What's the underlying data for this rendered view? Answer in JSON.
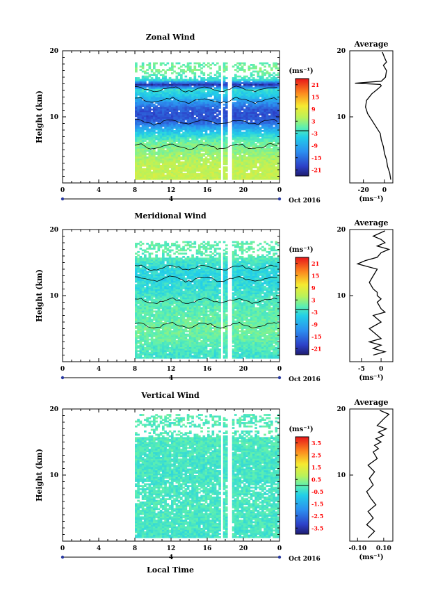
{
  "figure": {
    "xlabel": "Local Time",
    "date_label": "Oct 2016",
    "day_label": "4",
    "avg_title": "Average",
    "ylabel": "Height (km)",
    "unit": "(ms⁻¹)"
  },
  "chart_data": [
    {
      "type": "heatmap",
      "title": "Zonal Wind",
      "xlabel": "Local Time",
      "ylabel": "Height (km)",
      "xlim": [
        0,
        24
      ],
      "ylim": [
        0,
        20
      ],
      "xticks": [
        "0",
        "4",
        "8",
        "12",
        "16",
        "20",
        "0"
      ],
      "yticks": [
        "10",
        "20"
      ],
      "colorbar": {
        "unit": "(ms⁻¹)",
        "ticks": [
          "21",
          "15",
          "9",
          "3",
          "-3",
          "-9",
          "-15",
          "-21"
        ],
        "range": [
          -24,
          24
        ]
      },
      "data_window_hours": [
        8.0,
        24.0
      ],
      "gap_hours": [
        [
          17.3,
          17.6
        ],
        [
          18.2,
          18.6
        ]
      ],
      "profile": [
        {
          "height_km": 1.5,
          "value": 6
        },
        {
          "height_km": 3,
          "value": 5
        },
        {
          "height_km": 5,
          "value": 2
        },
        {
          "height_km": 6,
          "value": 1
        },
        {
          "height_km": 7,
          "value": -3
        },
        {
          "height_km": 8,
          "value": -8
        },
        {
          "height_km": 9,
          "value": -15
        },
        {
          "height_km": 10,
          "value": -18
        },
        {
          "height_km": 11,
          "value": -17
        },
        {
          "height_km": 12,
          "value": -12
        },
        {
          "height_km": 13,
          "value": -6
        },
        {
          "height_km": 14,
          "value": -3
        },
        {
          "height_km": 14.8,
          "value": -22
        },
        {
          "height_km": 15.5,
          "value": -3
        },
        {
          "height_km": 17,
          "value": 2
        },
        {
          "height_km": 18,
          "value": 0
        },
        {
          "height_km": 18.5,
          "value": -2
        }
      ],
      "average": {
        "title": "Average",
        "xticks": [
          "-20",
          "0"
        ],
        "xlim": [
          -33,
          8
        ],
        "xlabel": "(ms⁻¹)",
        "x": [
          6,
          5,
          3,
          2,
          0,
          -1,
          -3,
          -4,
          -8,
          -12,
          -16,
          -18,
          -17,
          -12,
          -8,
          -5,
          -3,
          -4,
          -28,
          -3,
          1,
          2,
          -1,
          2,
          0,
          -2
        ],
        "height": [
          0.5,
          1.5,
          2.5,
          3.5,
          4.5,
          5.5,
          6.5,
          7.5,
          8.5,
          9.5,
          10.5,
          11.5,
          12.5,
          13.5,
          14.0,
          14.4,
          14.7,
          14.9,
          15.1,
          15.4,
          16.0,
          17.0,
          17.8,
          18.3,
          19.0,
          19.8
        ]
      }
    },
    {
      "type": "heatmap",
      "title": "Meridional Wind",
      "xlabel": "Local Time",
      "ylabel": "Height (km)",
      "xlim": [
        0,
        24
      ],
      "ylim": [
        0,
        20
      ],
      "xticks": [
        "0",
        "4",
        "8",
        "12",
        "16",
        "20",
        "0"
      ],
      "yticks": [
        "10",
        "20"
      ],
      "colorbar": {
        "unit": "(ms⁻¹)",
        "ticks": [
          "21",
          "15",
          "9",
          "3",
          "-3",
          "-9",
          "-15",
          "-21"
        ],
        "range": [
          -24,
          24
        ]
      },
      "data_window_hours": [
        8.0,
        24.0
      ],
      "gap_hours": [
        [
          17.3,
          17.6
        ],
        [
          18.2,
          18.6
        ]
      ],
      "profile": [
        {
          "height_km": 1,
          "value": -2
        },
        {
          "height_km": 3,
          "value": 0
        },
        {
          "height_km": 5,
          "value": 1
        },
        {
          "height_km": 7,
          "value": 0
        },
        {
          "height_km": 9,
          "value": -1
        },
        {
          "height_km": 11,
          "value": -3
        },
        {
          "height_km": 13,
          "value": -4
        },
        {
          "height_km": 14.5,
          "value": -3
        },
        {
          "height_km": 15.5,
          "value": -1
        },
        {
          "height_km": 17,
          "value": 0
        },
        {
          "height_km": 18.5,
          "value": 0
        }
      ],
      "average": {
        "title": "Average",
        "xticks": [
          "-5",
          "0"
        ],
        "xlim": [
          -8,
          3
        ],
        "xlabel": "(ms⁻¹)",
        "x": [
          -2,
          1,
          -2,
          0,
          -3,
          0,
          -1,
          -3,
          0,
          -2,
          1,
          0,
          -1,
          0,
          -1,
          -1,
          -2,
          -3,
          -2,
          -1,
          -6,
          -4,
          -1,
          0,
          2,
          -1,
          1,
          0,
          -2,
          1
        ],
        "height": [
          1.0,
          1.5,
          2.0,
          2.5,
          3.0,
          3.5,
          4.0,
          5.0,
          6.0,
          7.0,
          7.5,
          8.0,
          9.0,
          9.5,
          10.0,
          10.5,
          11.0,
          12.0,
          13.0,
          14.0,
          14.8,
          15.3,
          15.8,
          16.5,
          17.0,
          17.5,
          18.0,
          18.5,
          19.0,
          19.8
        ]
      }
    },
    {
      "type": "heatmap",
      "title": "Vertical Wind",
      "xlabel": "Local Time",
      "ylabel": "Height (km)",
      "xlim": [
        0,
        24
      ],
      "ylim": [
        0,
        20
      ],
      "xticks": [
        "0",
        "4",
        "8",
        "12",
        "16",
        "20",
        "0"
      ],
      "yticks": [
        "10",
        "20"
      ],
      "colorbar": {
        "unit": "(ms⁻¹)",
        "ticks": [
          "3.5",
          "2.5",
          "1.5",
          "0.5",
          "-0.5",
          "-1.5",
          "-2.5",
          "-3.5"
        ],
        "range": [
          -4,
          4
        ]
      },
      "data_window_hours": [
        8.0,
        24.0
      ],
      "gap_hours": [
        [
          17.3,
          17.6
        ],
        [
          18.2,
          18.6
        ]
      ],
      "profile": [
        {
          "height_km": 1,
          "value": -0.3
        },
        {
          "height_km": 5,
          "value": -0.2
        },
        {
          "height_km": 10,
          "value": -0.3
        },
        {
          "height_km": 15,
          "value": -0.2
        },
        {
          "height_km": 19,
          "value": -0.1
        }
      ],
      "average": {
        "title": "Average",
        "xticks": [
          "-0.10",
          "0.10"
        ],
        "xlim": [
          -0.16,
          0.17
        ],
        "xlabel": "(ms⁻¹)",
        "x": [
          -0.02,
          0.03,
          -0.03,
          0.02,
          -0.02,
          0.04,
          0.0,
          -0.03,
          0.02,
          -0.01,
          0.03,
          -0.02,
          0.05,
          0.02,
          0.06,
          0.03,
          0.08,
          0.04,
          0.1,
          0.06,
          0.12,
          0.05,
          0.1,
          0.14,
          0.07
        ],
        "height": [
          0.5,
          1.5,
          2.5,
          3.5,
          4.5,
          5.5,
          6.5,
          7.5,
          8.5,
          9.5,
          10.5,
          11.5,
          12.5,
          13.5,
          14.0,
          14.5,
          15.0,
          15.5,
          16.0,
          16.5,
          17.0,
          17.5,
          18.5,
          19.2,
          19.8
        ]
      }
    }
  ]
}
